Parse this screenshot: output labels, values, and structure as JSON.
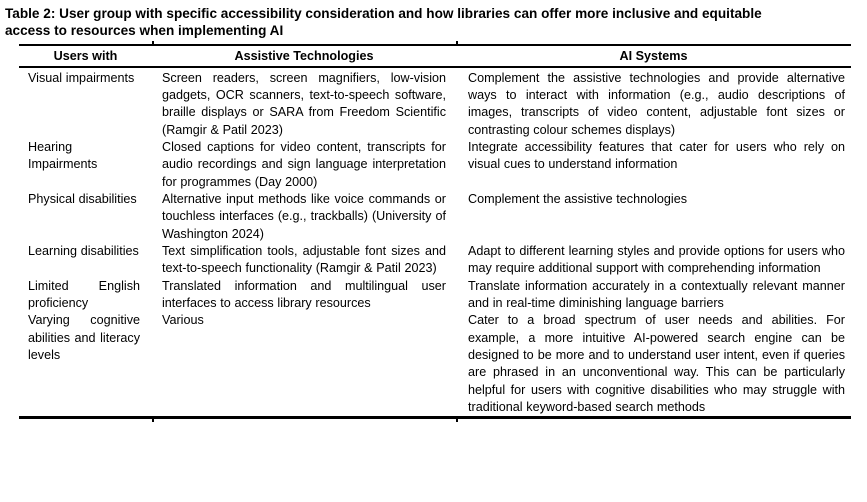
{
  "document": {
    "title_lines": [
      "Table 2: User group with specific accessibility consideration and how libraries can offer more inclusive and equitable",
      "access to resources when implementing AI"
    ]
  },
  "table": {
    "headers": [
      "Users with",
      "Assistive Technologies",
      "AI Systems"
    ],
    "rows": [
      {
        "users_with": "Visual impairments",
        "assistive_technologies": "Screen readers, screen magnifiers, low-vision gadgets, OCR scanners, text-to-speech software, braille displays or SARA from Freedom Scientific (Ramgir & Patil 2023)",
        "ai_systems": "Complement the assistive technologies and provide alternative ways to interact with information (e.g., audio descriptions of images, transcripts of video content, adjustable font sizes or contrasting colour schemes displays)"
      },
      {
        "users_with": "Hearing Impairments",
        "assistive_technologies": "Closed captions for video content, transcripts for audio recordings and sign language interpretation for programmes (Day 2000)",
        "ai_systems": "Integrate accessibility features that cater for users who rely on visual cues to understand information"
      },
      {
        "users_with": "Physical disabilities",
        "assistive_technologies": "Alternative input methods like voice commands or touchless interfaces (e.g., trackballs) (University of Washington 2024)",
        "ai_systems": "Complement the assistive technologies"
      },
      {
        "users_with": "Learning disabilities",
        "assistive_technologies": "Text simplification tools, adjustable font sizes and text-to-speech functionality (Ramgir & Patil 2023)",
        "ai_systems": "Adapt to different learning styles and provide options for users who may require additional support with comprehending information"
      },
      {
        "users_with": "Limited English proficiency",
        "assistive_technologies": "Translated information and multilingual user interfaces to access library resources",
        "ai_systems": "Translate information accurately in a contextually relevant manner and in real-time diminishing language barriers"
      },
      {
        "users_with": "Varying cognitive abilities and literacy levels",
        "assistive_technologies": "Various",
        "ai_systems": "Cater to a broad spectrum of user needs and abilities. For example, a more intuitive AI-powered search engine can be designed to be more and to understand user intent, even if queries are phrased in an unconventional way. This can be particularly helpful for users with cognitive disabilities who may struggle with traditional keyword-based search methods"
      }
    ]
  },
  "colors": {
    "text": "#000000",
    "background": "#ffffff",
    "rule": "#000000"
  }
}
